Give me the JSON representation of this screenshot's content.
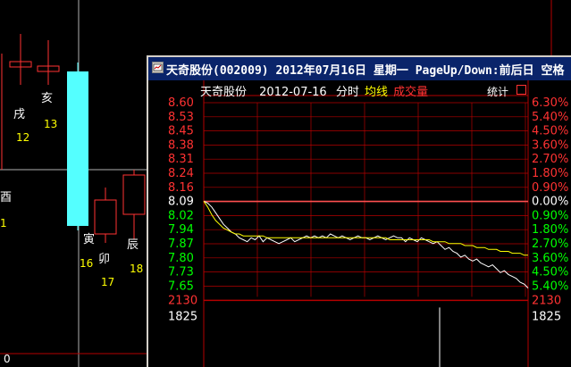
{
  "background": {
    "candles": [
      {
        "kind": "cross",
        "color": "#ff3232",
        "glyph": "戌",
        "day": "12"
      },
      {
        "kind": "cross",
        "color": "#ff3232",
        "glyph": "亥",
        "day": "13"
      },
      {
        "kind": "filled",
        "color": "#54ffff",
        "glyph": "寅",
        "day": "16"
      },
      {
        "kind": "hollow",
        "color": "#ff3232",
        "glyph": "卯",
        "day": "17"
      },
      {
        "kind": "hollow",
        "color": "#ff3232",
        "glyph": "辰",
        "day": "18"
      }
    ],
    "left_partial": {
      "glyph": "酉",
      "day": "1"
    },
    "bottom_left_text": "0"
  },
  "popup": {
    "title": "天奇股份(002009)  2012年07月16日  星期一  PageUp/Down:前后日  空格",
    "header": {
      "stock_name": "天奇股份",
      "date": "2012-07-16",
      "mode": "分时",
      "avg_line_label": "均线",
      "volume_label": "成交量",
      "stats_label": "统计"
    },
    "price_axis": [
      "8.60",
      "8.53",
      "8.45",
      "8.38",
      "8.31",
      "8.24",
      "8.16",
      "8.09",
      "8.02",
      "7.94",
      "7.87",
      "7.80",
      "7.73",
      "7.65"
    ],
    "pct_axis": [
      "6.30%",
      "5.40%",
      "4.50%",
      "3.60%",
      "2.70%",
      "1.80%",
      "0.90%",
      "0.00%",
      "0.90%",
      "1.80%",
      "2.70%",
      "3.60%",
      "4.50%",
      "5.40%"
    ],
    "volume_axis": {
      "left": [
        "2130",
        "1825"
      ],
      "right": [
        "2130",
        "1825"
      ]
    },
    "colors": {
      "up": "#ff3232",
      "down": "#00ff00",
      "neutral": "#ffffff",
      "avg": "#ffff00",
      "grid": "#b40000",
      "pct_up": "#ff3232",
      "pct_down": "#00ff00"
    },
    "chart_data": {
      "type": "line",
      "title": "",
      "prev_close": 8.09,
      "ylim": [
        7.65,
        8.6
      ],
      "series": [
        {
          "name": "",
          "values": [
            8.09,
            8.08,
            8.06,
            8.03,
            8.0,
            7.97,
            7.95,
            7.93,
            7.92,
            7.9,
            7.89,
            7.88,
            7.9,
            7.89,
            7.91,
            7.88,
            7.9,
            7.89,
            7.88,
            7.87,
            7.88,
            7.89,
            7.9,
            7.88,
            7.89,
            7.9,
            7.91,
            7.9,
            7.91,
            7.9,
            7.91,
            7.9,
            7.92,
            7.91,
            7.9,
            7.91,
            7.9,
            7.89,
            7.9,
            7.91,
            7.9,
            7.9,
            7.89,
            7.9,
            7.91,
            7.9,
            7.89,
            7.9,
            7.91,
            7.9,
            7.9,
            7.88,
            7.9,
            7.89,
            7.88,
            7.9,
            7.89,
            7.88,
            7.87,
            7.88,
            7.86,
            7.84,
            7.85,
            7.83,
            7.82,
            7.8,
            7.81,
            7.79,
            7.78,
            7.79,
            7.77,
            7.76,
            7.75,
            7.76,
            7.74,
            7.72,
            7.73,
            7.71,
            7.7,
            7.69,
            7.67,
            7.66,
            7.64
          ]
        },
        {
          "name": "均线",
          "values": [
            8.09,
            8.06,
            8.02,
            7.99,
            7.97,
            7.95,
            7.94,
            7.93,
            7.92,
            7.92,
            7.91,
            7.91,
            7.91,
            7.91,
            7.91,
            7.91,
            7.9,
            7.9,
            7.9,
            7.9,
            7.9,
            7.9,
            7.9,
            7.9,
            7.9,
            7.9,
            7.9,
            7.9,
            7.9,
            7.9,
            7.9,
            7.9,
            7.9,
            7.9,
            7.9,
            7.9,
            7.9,
            7.9,
            7.9,
            7.9,
            7.9,
            7.9,
            7.9,
            7.9,
            7.9,
            7.9,
            7.9,
            7.89,
            7.89,
            7.89,
            7.89,
            7.89,
            7.89,
            7.89,
            7.89,
            7.89,
            7.89,
            7.89,
            7.88,
            7.88,
            7.88,
            7.88,
            7.87,
            7.87,
            7.87,
            7.87,
            7.86,
            7.86,
            7.86,
            7.85,
            7.85,
            7.85,
            7.84,
            7.84,
            7.84,
            7.83,
            7.83,
            7.83,
            7.82,
            7.82,
            7.82,
            7.81,
            7.81
          ]
        }
      ]
    }
  }
}
